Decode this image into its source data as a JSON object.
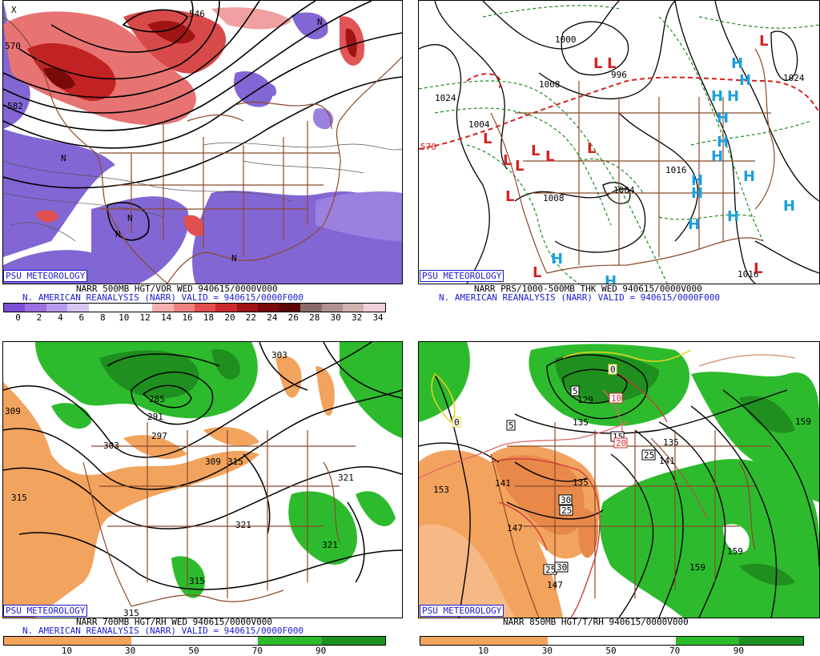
{
  "badge": "PSU METEOROLOGY",
  "top_left": {
    "caption1": "NARR 500MB HGT/VOR WED 940615/0000V000",
    "caption2": "N. AMERICAN REANALYSIS (NARR) VALID = 940615/0000F000",
    "colorbar_labels": [
      "0",
      "2",
      "4",
      "6",
      "8",
      "10",
      "12",
      "14",
      "16",
      "18",
      "20",
      "22",
      "24",
      "26",
      "28",
      "30",
      "32",
      "34"
    ],
    "colorbar_colors": [
      "#7b4fd6",
      "#9b6fe0",
      "#b79aee",
      "#d6c6f6",
      "#ffffff",
      "#ffffff",
      "#ffffff",
      "#f6b0b0",
      "#ee8080",
      "#e05050",
      "#cc2a2a",
      "#a01414",
      "#7a0a0a",
      "#5a0505",
      "#8a6a6a",
      "#b09090",
      "#d0b0b0",
      "#f0d0d8"
    ],
    "labels": [
      "582",
      "570",
      "546",
      "N",
      "N",
      "N",
      "N",
      "X",
      "N"
    ]
  },
  "top_right": {
    "caption1": "NARR PRS/1000-500MB THK WED 940615/0000V000",
    "caption2": "N. AMERICAN REANALYSIS (NARR) VALID = 940615/0000F000",
    "labels": [
      "1024",
      "1000",
      "1008",
      "570",
      "996",
      "1024",
      "1008",
      "1016",
      "1016",
      "1016",
      "1004",
      "1004"
    ],
    "L": "L",
    "H": "H"
  },
  "bottom_left": {
    "caption1": "NARR 700MB HGT/RH WED 940615/0000V000",
    "caption2": "N. AMERICAN REANALYSIS (NARR) VALID = 940615/0000F000",
    "colorbar_labels": [
      "10",
      "30",
      "50",
      "70",
      "90"
    ],
    "labels": [
      "303",
      "309",
      "285",
      "291",
      "297",
      "303",
      "309",
      "315",
      "321",
      "315",
      "321",
      "321",
      "315",
      "315"
    ]
  },
  "bottom_right": {
    "caption1": "NARR 850MB HGT/T/RH 940615/0000V000",
    "colorbar_labels": [
      "10",
      "30",
      "50",
      "70",
      "90"
    ],
    "labels": [
      "153",
      "141",
      "147",
      "135",
      "135",
      "129",
      "141",
      "159",
      "159",
      "159",
      "147",
      "135"
    ],
    "temp_boxes": [
      "0",
      "0",
      "5",
      "5",
      "10",
      "15",
      "20",
      "25",
      "25",
      "30",
      "25",
      "30"
    ]
  }
}
